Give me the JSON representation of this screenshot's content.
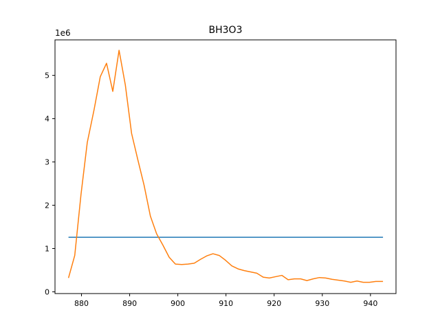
{
  "chart_data": {
    "type": "line",
    "title": "BH3O3",
    "xlabel": "",
    "ylabel": "",
    "y_offset_label": "1e6",
    "xlim": [
      874.5,
      945.3
    ],
    "ylim": [
      -0.04,
      5.82
    ],
    "y_scale_factor": 1000000,
    "grid": false,
    "legend": "none",
    "x_ticks": [
      880,
      890,
      900,
      910,
      920,
      930,
      940
    ],
    "y_ticks": [
      0,
      1,
      2,
      3,
      4,
      5
    ],
    "series": [
      {
        "color": "#1f77b4",
        "x": [
          877.3,
          942.6
        ],
        "y": [
          1.26,
          1.26
        ]
      },
      {
        "color": "#ff7f0e",
        "x": [
          877.3,
          878.6,
          879.9,
          881.2,
          882.6,
          883.9,
          885.2,
          886.5,
          887.8,
          889.1,
          890.4,
          891.7,
          893.0,
          894.3,
          895.6,
          896.9,
          898.2,
          899.5,
          900.8,
          902.1,
          903.4,
          904.7,
          906.0,
          907.3,
          908.6,
          909.9,
          911.2,
          912.5,
          913.8,
          915.1,
          916.4,
          917.7,
          919.0,
          920.3,
          921.6,
          922.9,
          924.2,
          925.5,
          926.8,
          928.1,
          929.4,
          930.7,
          932.0,
          933.3,
          934.6,
          935.9,
          937.2,
          938.5,
          939.8,
          941.1,
          942.6
        ],
        "y": [
          0.32,
          0.84,
          2.25,
          3.45,
          4.2,
          4.97,
          5.28,
          4.63,
          5.58,
          4.78,
          3.66,
          3.05,
          2.46,
          1.75,
          1.34,
          1.08,
          0.8,
          0.64,
          0.63,
          0.64,
          0.66,
          0.75,
          0.83,
          0.88,
          0.84,
          0.73,
          0.6,
          0.53,
          0.49,
          0.46,
          0.43,
          0.34,
          0.32,
          0.35,
          0.38,
          0.28,
          0.3,
          0.3,
          0.26,
          0.3,
          0.33,
          0.32,
          0.29,
          0.27,
          0.25,
          0.22,
          0.25,
          0.22,
          0.22,
          0.24,
          0.24
        ]
      }
    ]
  }
}
